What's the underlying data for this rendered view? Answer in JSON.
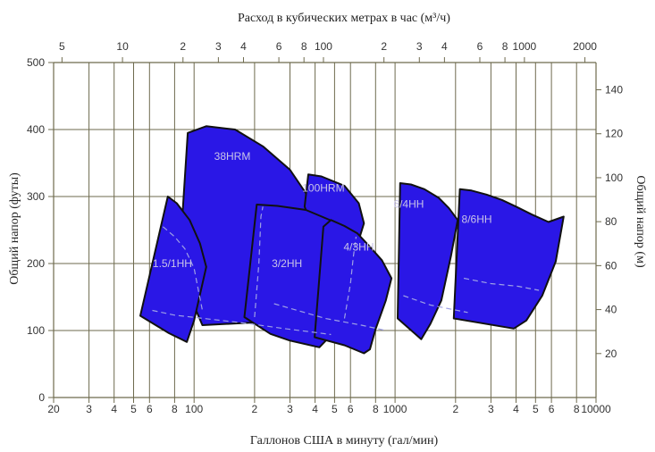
{
  "chart_data": {
    "type": "area",
    "title": "Расход в кубических метрах в час (м³/ч)",
    "xlabel": "Галлонов США в минуту (гал/мин)",
    "ylabel": "Общий напор (футы)",
    "ylabel_right": "Общий напор (м)",
    "x_scale": "log",
    "xlim": [
      20,
      10000
    ],
    "ylim": [
      0,
      500
    ],
    "y2lim": [
      0,
      152.4
    ],
    "grid": true,
    "legend": "none",
    "fill_color": "#2a17e6",
    "x_bottom_ticks": [
      {
        "v": 20,
        "label": "20"
      },
      {
        "v": 30,
        "label": "3"
      },
      {
        "v": 40,
        "label": "4"
      },
      {
        "v": 50,
        "label": "5"
      },
      {
        "v": 60,
        "label": "6"
      },
      {
        "v": 80,
        "label": "8"
      },
      {
        "v": 100,
        "label": "100"
      },
      {
        "v": 200,
        "label": "2"
      },
      {
        "v": 300,
        "label": "3"
      },
      {
        "v": 400,
        "label": "4"
      },
      {
        "v": 500,
        "label": "5"
      },
      {
        "v": 600,
        "label": "6"
      },
      {
        "v": 800,
        "label": "8"
      },
      {
        "v": 1000,
        "label": "1000"
      },
      {
        "v": 2000,
        "label": "2"
      },
      {
        "v": 3000,
        "label": "3"
      },
      {
        "v": 4000,
        "label": "4"
      },
      {
        "v": 5000,
        "label": "5"
      },
      {
        "v": 6000,
        "label": "6"
      },
      {
        "v": 8000,
        "label": "8"
      },
      {
        "v": 10000,
        "label": "10000"
      }
    ],
    "x_top_ticks": [
      {
        "v": 5,
        "label": "5"
      },
      {
        "v": 10,
        "label": "10"
      },
      {
        "v": 20,
        "label": "2"
      },
      {
        "v": 30,
        "label": "3"
      },
      {
        "v": 40,
        "label": "4"
      },
      {
        "v": 60,
        "label": "6"
      },
      {
        "v": 80,
        "label": "8"
      },
      {
        "v": 100,
        "label": "100"
      },
      {
        "v": 200,
        "label": "2"
      },
      {
        "v": 300,
        "label": "3"
      },
      {
        "v": 400,
        "label": "4"
      },
      {
        "v": 600,
        "label": "6"
      },
      {
        "v": 800,
        "label": "8"
      },
      {
        "v": 1000,
        "label": "1000"
      },
      {
        "v": 2000,
        "label": "2000"
      }
    ],
    "y_left_ticks": [
      0,
      100,
      200,
      300,
      400,
      500
    ],
    "y_right_ticks": [
      20,
      40,
      60,
      80,
      100,
      120,
      140
    ],
    "series": [
      {
        "name": "38HRM",
        "label_at": [
          155,
          360
        ],
        "outline": [
          [
            93,
            395
          ],
          [
            115,
            405
          ],
          [
            160,
            400
          ],
          [
            220,
            375
          ],
          [
            300,
            340
          ],
          [
            360,
            305
          ],
          [
            420,
            240
          ],
          [
            470,
            210
          ],
          [
            430,
            150
          ],
          [
            300,
            118
          ],
          [
            200,
            112
          ],
          [
            110,
            108
          ],
          [
            84,
            190
          ]
        ]
      },
      {
        "name": "1.5/1HH",
        "label_at": [
          78,
          200
        ],
        "outline": [
          [
            54,
            122
          ],
          [
            74,
            300
          ],
          [
            82,
            290
          ],
          [
            95,
            265
          ],
          [
            107,
            230
          ],
          [
            115,
            195
          ],
          [
            100,
            115
          ],
          [
            92,
            83
          ],
          [
            75,
            96
          ]
        ]
      },
      {
        "name": "100HRM",
        "label_at": [
          440,
          313
        ],
        "outline": [
          [
            355,
            285
          ],
          [
            370,
            333
          ],
          [
            430,
            330
          ],
          [
            560,
            316
          ],
          [
            660,
            290
          ],
          [
            700,
            260
          ],
          [
            660,
            235
          ],
          [
            560,
            215
          ],
          [
            470,
            188
          ]
        ]
      },
      {
        "name": "3/2HH",
        "label_at": [
          290,
          200
        ],
        "outline": [
          [
            178,
            120
          ],
          [
            205,
            288
          ],
          [
            260,
            286
          ],
          [
            360,
            280
          ],
          [
            500,
            262
          ],
          [
            600,
            245
          ],
          [
            655,
            222
          ],
          [
            640,
            175
          ],
          [
            560,
            145
          ],
          [
            480,
            93
          ],
          [
            420,
            75
          ],
          [
            300,
            85
          ],
          [
            240,
            95
          ]
        ]
      },
      {
        "name": "4/3HH",
        "label_at": [
          660,
          225
        ],
        "outline": [
          [
            398,
            90
          ],
          [
            440,
            255
          ],
          [
            480,
            265
          ],
          [
            560,
            256
          ],
          [
            650,
            245
          ],
          [
            750,
            225
          ],
          [
            860,
            205
          ],
          [
            960,
            178
          ],
          [
            900,
            145
          ],
          [
            800,
            102
          ],
          [
            750,
            72
          ],
          [
            700,
            66
          ],
          [
            560,
            78
          ]
        ]
      },
      {
        "name": "6/4HH",
        "label_at": [
          1170,
          289
        ],
        "outline": [
          [
            1030,
            118
          ],
          [
            1060,
            320
          ],
          [
            1200,
            318
          ],
          [
            1400,
            311
          ],
          [
            1650,
            298
          ],
          [
            1850,
            283
          ],
          [
            2050,
            265
          ],
          [
            1900,
            212
          ],
          [
            1700,
            145
          ],
          [
            1500,
            110
          ],
          [
            1350,
            87
          ]
        ]
      },
      {
        "name": "8/6HH",
        "label_at": [
          2550,
          266
        ],
        "outline": [
          [
            1960,
            118
          ],
          [
            2100,
            311
          ],
          [
            2400,
            309
          ],
          [
            2850,
            303
          ],
          [
            3400,
            295
          ],
          [
            4000,
            285
          ],
          [
            4800,
            273
          ],
          [
            5800,
            262
          ],
          [
            6900,
            270
          ],
          [
            6300,
            203
          ],
          [
            5400,
            152
          ],
          [
            4500,
            115
          ],
          [
            3900,
            103
          ]
        ]
      }
    ],
    "dashed_lines": [
      {
        "points": [
          [
            62,
            130
          ],
          [
            80,
            123
          ],
          [
            120,
            117
          ],
          [
            180,
            111
          ],
          [
            280,
            103
          ],
          [
            380,
            98
          ],
          [
            480,
            94
          ]
        ]
      },
      {
        "points": [
          [
            70,
            255
          ],
          [
            80,
            240
          ],
          [
            90,
            222
          ],
          [
            100,
            193
          ],
          [
            105,
            160
          ],
          [
            110,
            130
          ]
        ]
      },
      {
        "points": [
          [
            200,
            120
          ],
          [
            210,
            200
          ],
          [
            215,
            270
          ],
          [
            220,
            285
          ]
        ]
      },
      {
        "points": [
          [
            250,
            140
          ],
          [
            450,
            118
          ],
          [
            680,
            108
          ],
          [
            900,
            100
          ]
        ]
      },
      {
        "points": [
          [
            560,
            118
          ],
          [
            600,
            170
          ],
          [
            620,
            210
          ],
          [
            640,
            240
          ]
        ]
      },
      {
        "points": [
          [
            1100,
            152
          ],
          [
            1500,
            138
          ],
          [
            2300,
            127
          ]
        ]
      },
      {
        "points": [
          [
            2200,
            178
          ],
          [
            3000,
            170
          ],
          [
            4100,
            166
          ],
          [
            5200,
            160
          ]
        ]
      }
    ]
  }
}
